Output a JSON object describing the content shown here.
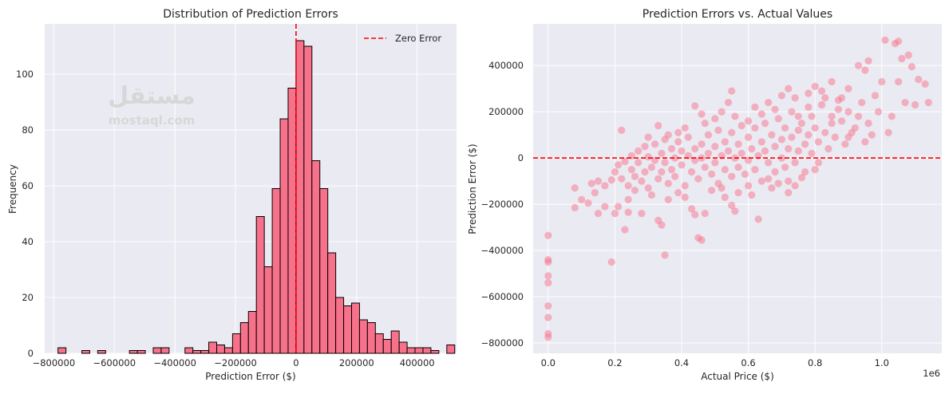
{
  "watermark": {
    "logo_text": "مستقل",
    "site": "mostaql.com"
  },
  "chart_data": [
    {
      "type": "bar",
      "subtype": "histogram",
      "title": "Distribution of Prediction Errors",
      "xlabel": "Prediction Error ($)",
      "ylabel": "Frequency",
      "bin_range": [
        -786000,
        524000
      ],
      "counts": [
        2,
        0,
        0,
        1,
        0,
        1,
        0,
        0,
        0,
        1,
        1,
        0,
        2,
        2,
        0,
        0,
        2,
        1,
        1,
        4,
        3,
        2,
        7,
        11,
        15,
        49,
        31,
        59,
        84,
        95,
        112,
        110,
        69,
        59,
        36,
        20,
        17,
        18,
        12,
        11,
        7,
        5,
        8,
        4,
        2,
        2,
        2,
        1,
        0,
        3
      ],
      "xlim": [
        -830000,
        530000
      ],
      "ylim": [
        0,
        118
      ],
      "xticks": [
        -800000,
        -600000,
        -400000,
        -200000,
        0,
        200000,
        400000
      ],
      "xtick_labels": [
        "−800000",
        "−600000",
        "−400000",
        "−200000",
        "0",
        "200000",
        "400000"
      ],
      "yticks": [
        0,
        20,
        40,
        60,
        80,
        100
      ],
      "ytick_labels": [
        "0",
        "20",
        "40",
        "60",
        "80",
        "100"
      ],
      "bar_color": "#f7718a",
      "reference_line": {
        "x": 0,
        "color": "#ff0000",
        "style": "dashed",
        "label": "Zero Error"
      },
      "legend": {
        "position": "top-right",
        "entries": [
          "Zero Error"
        ]
      },
      "grid": true
    },
    {
      "type": "scatter",
      "title": "Prediction Errors vs. Actual Values",
      "xlabel": "Actual Price ($)",
      "ylabel": "Prediction Error ($)",
      "x_offset_label": "1e6",
      "xlim": [
        -0.045,
        1.18
      ],
      "ylim": [
        -845000,
        580000
      ],
      "xticks": [
        0,
        0.2,
        0.4,
        0.6,
        0.8,
        1.0
      ],
      "xtick_labels": [
        "0.0",
        "0.2",
        "0.4",
        "0.6",
        "0.8",
        "1.0"
      ],
      "yticks": [
        -800000,
        -600000,
        -400000,
        -200000,
        0,
        200000,
        400000
      ],
      "ytick_labels": [
        "−800000",
        "−600000",
        "−400000",
        "−200000",
        "0",
        "200000",
        "400000"
      ],
      "point_color": "#f7718a",
      "point_alpha": 0.5,
      "reference_line": {
        "y": 0,
        "color": "#ff0000",
        "style": "dashed"
      },
      "grid": true,
      "point_units": {
        "x": 1000000,
        "y": 1000
      },
      "points": [
        [
          0,
          -335
        ],
        [
          0,
          -440
        ],
        [
          0,
          -450
        ],
        [
          0,
          -510
        ],
        [
          0,
          -540
        ],
        [
          0,
          -640
        ],
        [
          0,
          -690
        ],
        [
          0,
          -760
        ],
        [
          0,
          -775
        ],
        [
          0.08,
          -130
        ],
        [
          0.08,
          -215
        ],
        [
          0.1,
          -180
        ],
        [
          0.12,
          -195
        ],
        [
          0.14,
          -150
        ],
        [
          0.15,
          -240
        ],
        [
          0.17,
          -210
        ],
        [
          0.19,
          -450
        ],
        [
          0.2,
          -240
        ],
        [
          0.21,
          -210
        ],
        [
          0.23,
          -310
        ],
        [
          0.24,
          -180
        ],
        [
          0.24,
          -235
        ],
        [
          0.28,
          -240
        ],
        [
          0.33,
          -270
        ],
        [
          0.35,
          -420
        ],
        [
          0.34,
          -290
        ],
        [
          0.36,
          -180
        ],
        [
          0.43,
          -220
        ],
        [
          0.44,
          -245
        ],
        [
          0.45,
          -345
        ],
        [
          0.46,
          -355
        ],
        [
          0.47,
          -240
        ],
        [
          0.53,
          -170
        ],
        [
          0.55,
          -205
        ],
        [
          0.56,
          -230
        ],
        [
          0.63,
          -265
        ],
        [
          0.72,
          -150
        ],
        [
          0.22,
          120
        ],
        [
          0.33,
          140
        ],
        [
          0.39,
          110
        ],
        [
          0.44,
          225
        ],
        [
          0.46,
          190
        ],
        [
          0.54,
          240
        ],
        [
          0.55,
          290
        ],
        [
          0.6,
          160
        ],
        [
          0.64,
          190
        ],
        [
          0.7,
          270
        ],
        [
          0.72,
          300
        ],
        [
          0.8,
          310
        ],
        [
          0.82,
          290
        ],
        [
          0.85,
          330
        ],
        [
          0.87,
          210
        ],
        [
          0.9,
          300
        ],
        [
          0.93,
          400
        ],
        [
          0.95,
          380
        ],
        [
          0.96,
          420
        ],
        [
          1.01,
          510
        ],
        [
          1.04,
          495
        ],
        [
          1.05,
          505
        ],
        [
          1.06,
          430
        ],
        [
          1.08,
          445
        ],
        [
          1.09,
          395
        ],
        [
          1.11,
          340
        ],
        [
          1.13,
          320
        ],
        [
          1.14,
          240
        ],
        [
          1.1,
          230
        ],
        [
          1.05,
          330
        ],
        [
          1.0,
          330
        ],
        [
          0.98,
          270
        ],
        [
          0.99,
          200
        ],
        [
          1.03,
          180
        ],
        [
          1.07,
          240
        ],
        [
          1.02,
          110
        ],
        [
          0.95,
          70
        ],
        [
          0.9,
          90
        ],
        [
          0.92,
          130
        ],
        [
          0.85,
          180
        ],
        [
          0.78,
          220
        ],
        [
          0.75,
          180
        ],
        [
          0.8,
          -50
        ],
        [
          0.76,
          -85
        ],
        [
          0.72,
          -100
        ],
        [
          0.66,
          -90
        ],
        [
          0.6,
          -120
        ],
        [
          0.13,
          -110
        ],
        [
          0.15,
          -100
        ],
        [
          0.17,
          -120
        ],
        [
          0.19,
          -95
        ],
        [
          0.2,
          -60
        ],
        [
          0.21,
          -30
        ],
        [
          0.22,
          -90
        ],
        [
          0.23,
          -15
        ],
        [
          0.24,
          -120
        ],
        [
          0.25,
          10
        ],
        [
          0.25,
          -50
        ],
        [
          0.26,
          -80
        ],
        [
          0.27,
          30
        ],
        [
          0.27,
          -20
        ],
        [
          0.28,
          -100
        ],
        [
          0.29,
          50
        ],
        [
          0.29,
          -60
        ],
        [
          0.3,
          5
        ],
        [
          0.3,
          -130
        ],
        [
          0.31,
          -40
        ],
        [
          0.32,
          60
        ],
        [
          0.32,
          -10
        ],
        [
          0.33,
          -90
        ],
        [
          0.34,
          20
        ],
        [
          0.34,
          -60
        ],
        [
          0.35,
          80
        ],
        [
          0.35,
          -20
        ],
        [
          0.36,
          -110
        ],
        [
          0.37,
          40
        ],
        [
          0.37,
          -50
        ],
        [
          0.38,
          0
        ],
        [
          0.38,
          -80
        ],
        [
          0.39,
          70
        ],
        [
          0.4,
          -30
        ],
        [
          0.4,
          30
        ],
        [
          0.41,
          -120
        ],
        [
          0.42,
          10
        ],
        [
          0.42,
          90
        ],
        [
          0.43,
          -60
        ],
        [
          0.44,
          40
        ],
        [
          0.44,
          -10
        ],
        [
          0.45,
          -90
        ],
        [
          0.46,
          60
        ],
        [
          0.46,
          0
        ],
        [
          0.47,
          -40
        ],
        [
          0.48,
          100
        ],
        [
          0.48,
          20
        ],
        [
          0.49,
          -70
        ],
        [
          0.5,
          50
        ],
        [
          0.5,
          -20
        ],
        [
          0.51,
          120
        ],
        [
          0.51,
          -110
        ],
        [
          0.52,
          10
        ],
        [
          0.53,
          70
        ],
        [
          0.53,
          -50
        ],
        [
          0.54,
          30
        ],
        [
          0.55,
          -80
        ],
        [
          0.55,
          110
        ],
        [
          0.56,
          0
        ],
        [
          0.57,
          60
        ],
        [
          0.57,
          -40
        ],
        [
          0.58,
          140
        ],
        [
          0.58,
          20
        ],
        [
          0.59,
          -70
        ],
        [
          0.6,
          90
        ],
        [
          0.6,
          -10
        ],
        [
          0.61,
          40
        ],
        [
          0.62,
          -50
        ],
        [
          0.62,
          130
        ],
        [
          0.63,
          10
        ],
        [
          0.64,
          70
        ],
        [
          0.64,
          -100
        ],
        [
          0.65,
          150
        ],
        [
          0.65,
          30
        ],
        [
          0.66,
          -20
        ],
        [
          0.67,
          100
        ],
        [
          0.68,
          50
        ],
        [
          0.68,
          -60
        ],
        [
          0.69,
          170
        ],
        [
          0.7,
          0
        ],
        [
          0.7,
          80
        ],
        [
          0.71,
          130
        ],
        [
          0.71,
          -40
        ],
        [
          0.72,
          40
        ],
        [
          0.73,
          200
        ],
        [
          0.73,
          90
        ],
        [
          0.74,
          -20
        ],
        [
          0.75,
          120
        ],
        [
          0.75,
          30
        ],
        [
          0.76,
          150
        ],
        [
          0.77,
          60
        ],
        [
          0.77,
          -60
        ],
        [
          0.78,
          100
        ],
        [
          0.79,
          20
        ],
        [
          0.79,
          180
        ],
        [
          0.8,
          130
        ],
        [
          0.81,
          70
        ],
        [
          0.81,
          -20
        ],
        [
          0.82,
          230
        ],
        [
          0.83,
          110
        ],
        [
          0.84,
          40
        ],
        [
          0.85,
          150
        ],
        [
          0.86,
          90
        ],
        [
          0.87,
          250
        ],
        [
          0.88,
          160
        ],
        [
          0.89,
          60
        ],
        [
          0.9,
          200
        ],
        [
          0.91,
          110
        ],
        [
          0.93,
          180
        ],
        [
          0.94,
          240
        ],
        [
          0.96,
          150
        ],
        [
          0.97,
          100
        ],
        [
          0.26,
          -140
        ],
        [
          0.31,
          -160
        ],
        [
          0.39,
          -150
        ],
        [
          0.41,
          -170
        ],
        [
          0.49,
          -140
        ],
        [
          0.52,
          -130
        ],
        [
          0.57,
          -150
        ],
        [
          0.61,
          -160
        ],
        [
          0.67,
          -130
        ],
        [
          0.69,
          -110
        ],
        [
          0.74,
          -120
        ],
        [
          0.3,
          90
        ],
        [
          0.36,
          100
        ],
        [
          0.41,
          130
        ],
        [
          0.47,
          150
        ],
        [
          0.5,
          170
        ],
        [
          0.52,
          200
        ],
        [
          0.56,
          180
        ],
        [
          0.62,
          220
        ],
        [
          0.66,
          240
        ],
        [
          0.68,
          210
        ],
        [
          0.74,
          260
        ],
        [
          0.78,
          280
        ],
        [
          0.83,
          260
        ],
        [
          0.88,
          260
        ]
      ]
    }
  ]
}
